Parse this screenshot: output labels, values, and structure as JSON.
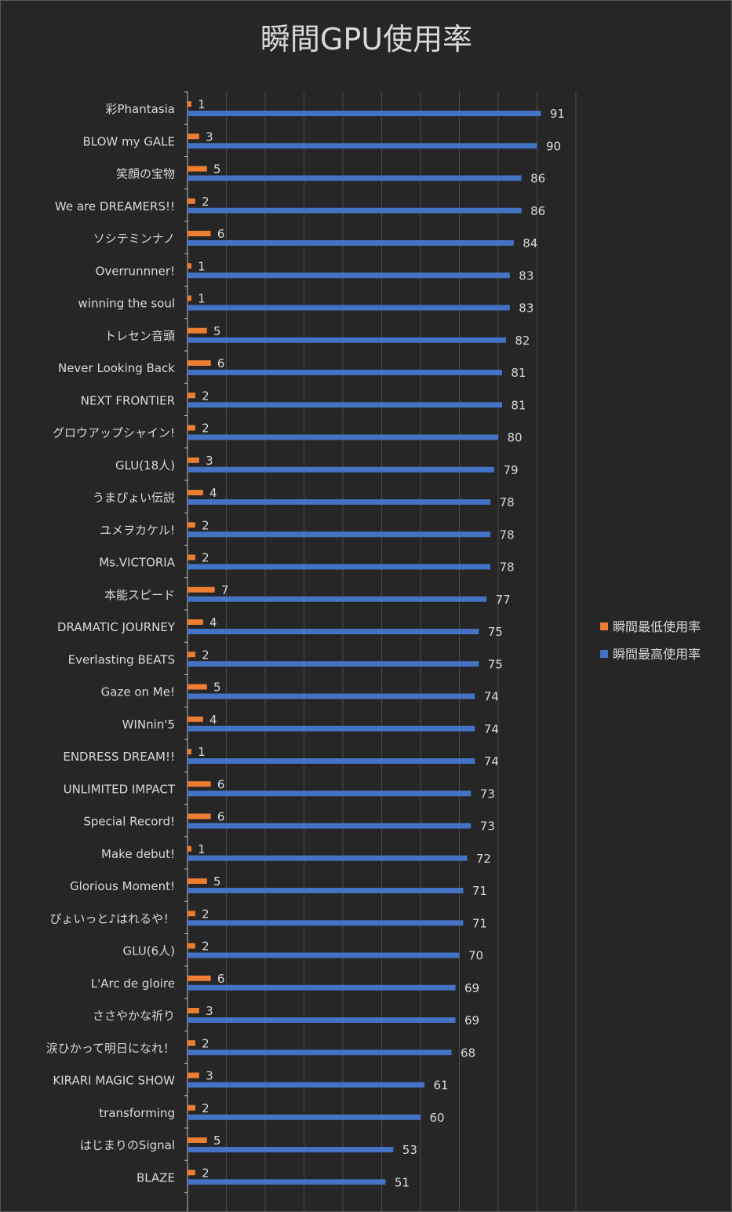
{
  "chart_data": {
    "type": "bar",
    "orientation": "horizontal",
    "title": "瞬間GPU使用率",
    "categories": [
      "彩Phantasia",
      "BLOW my GALE",
      "笑顔の宝物",
      "We are DREAMERS!!",
      "ソシテミンナノ",
      "Overrunnner!",
      "winning the soul",
      "トレセン音頭",
      "Never Looking Back",
      "NEXT FRONTIER",
      "グロウアップシャイン!",
      "GLU(18人)",
      "うまぴょい伝説",
      "ユメヲカケル!",
      "Ms.VICTORIA",
      "本能スピード",
      "DRAMATIC JOURNEY",
      "Everlasting BEATS",
      "Gaze on Me!",
      "WINnin'5",
      "ENDRESS DREAM!!",
      "UNLIMITED IMPACT",
      "Special Record!",
      "Make debut!",
      "Glorious Moment!",
      "ぴょいっと♪はれるや！",
      "GLU(6人)",
      "L'Arc de gloire",
      "ささやかな祈り",
      "涙ひかって明日になれ！",
      "KIRARI MAGIC SHOW",
      "transforming",
      "はじまりのSignal",
      "BLAZE"
    ],
    "series": [
      {
        "name": "瞬間最低使用率",
        "color": "#ed7d31",
        "values": [
          1,
          3,
          5,
          2,
          6,
          1,
          1,
          5,
          6,
          2,
          2,
          3,
          4,
          2,
          2,
          7,
          4,
          2,
          5,
          4,
          1,
          6,
          6,
          1,
          5,
          2,
          2,
          6,
          3,
          2,
          3,
          2,
          5,
          2
        ]
      },
      {
        "name": "瞬間最高使用率",
        "color": "#4472c4",
        "values": [
          91,
          90,
          86,
          86,
          84,
          83,
          83,
          82,
          81,
          81,
          80,
          79,
          78,
          78,
          78,
          77,
          75,
          75,
          74,
          74,
          74,
          73,
          73,
          72,
          71,
          71,
          70,
          69,
          69,
          68,
          61,
          60,
          53,
          51
        ]
      }
    ],
    "xlim": [
      0,
      100
    ],
    "x_gridlines_every": 10,
    "data_labels": true,
    "legend_position": "right",
    "grid": true
  }
}
